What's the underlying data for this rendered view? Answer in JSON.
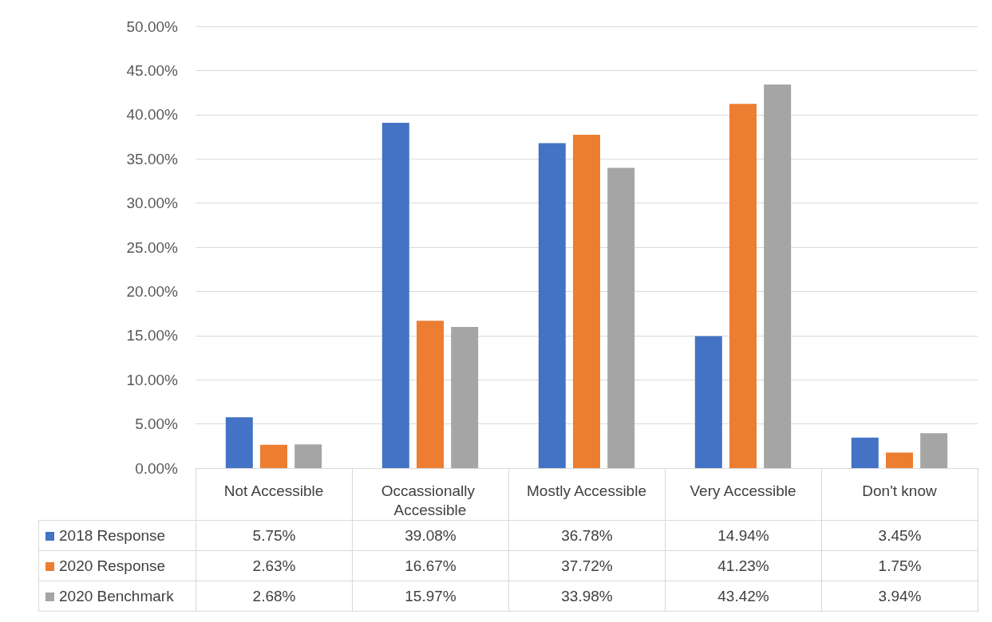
{
  "chart_data": {
    "type": "bar",
    "categories": [
      "Not Accessible",
      "Occassionally Accessible",
      "Mostly Accessible",
      "Very Accessible",
      "Don't know"
    ],
    "series": [
      {
        "name": "2018 Response",
        "color": "#4472c4",
        "values": [
          5.75,
          39.08,
          36.78,
          14.94,
          3.45
        ],
        "value_labels": [
          "5.75%",
          "39.08%",
          "36.78%",
          "14.94%",
          "3.45%"
        ]
      },
      {
        "name": "2020 Response",
        "color": "#ed7d31",
        "values": [
          2.63,
          16.67,
          37.72,
          41.23,
          1.75
        ],
        "value_labels": [
          "2.63%",
          "16.67%",
          "37.72%",
          "41.23%",
          "1.75%"
        ]
      },
      {
        "name": "2020 Benchmark",
        "color": "#a5a5a5",
        "values": [
          2.68,
          15.97,
          33.98,
          43.42,
          3.94
        ],
        "value_labels": [
          "2.68%",
          "15.97%",
          "33.98%",
          "43.42%",
          "3.94%"
        ]
      }
    ],
    "ylim": [
      0,
      50
    ],
    "yticks": [
      {
        "value": 0,
        "label": "0.00%"
      },
      {
        "value": 5,
        "label": "5.00%"
      },
      {
        "value": 10,
        "label": "10.00%"
      },
      {
        "value": 15,
        "label": "15.00%"
      },
      {
        "value": 20,
        "label": "20.00%"
      },
      {
        "value": 25,
        "label": "25.00%"
      },
      {
        "value": 30,
        "label": "30.00%"
      },
      {
        "value": 35,
        "label": "35.00%"
      },
      {
        "value": 40,
        "label": "40.00%"
      },
      {
        "value": 45,
        "label": "45.00%"
      },
      {
        "value": 50,
        "label": "50.00%"
      }
    ],
    "grid": "y",
    "legend": "bottom"
  }
}
